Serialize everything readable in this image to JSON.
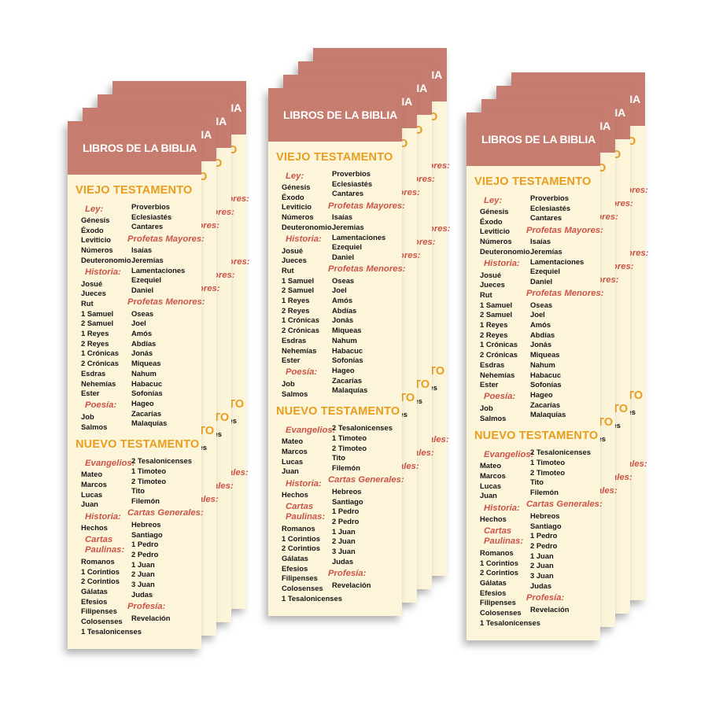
{
  "title": {
    "text": "LIBROS DE LA BIBLIA"
  },
  "colors": {
    "background": "#FFFFFF",
    "header": "#C67D70",
    "body": "#FCF5DA",
    "heading": "#E89D1F",
    "category": "#CB5347",
    "book": "#161616"
  },
  "old_testament": {
    "heading": "VIEJO TESTAMENTO",
    "left": [
      {
        "t": "cat",
        "text": "Ley:"
      },
      {
        "t": "book",
        "text": "Génesis"
      },
      {
        "t": "book",
        "text": "Éxodo"
      },
      {
        "t": "book",
        "text": "Leviticio"
      },
      {
        "t": "book",
        "text": "Números"
      },
      {
        "t": "book",
        "text": "Deuteronomio"
      },
      {
        "t": "cat",
        "text": "Historia:"
      },
      {
        "t": "book",
        "text": "Josué"
      },
      {
        "t": "book",
        "text": "Jueces"
      },
      {
        "t": "book",
        "text": "Rut"
      },
      {
        "t": "book",
        "text": "1 Samuel"
      },
      {
        "t": "book",
        "text": "2 Samuel"
      },
      {
        "t": "book",
        "text": "1 Reyes"
      },
      {
        "t": "book",
        "text": "2 Reyes"
      },
      {
        "t": "book",
        "text": "1 Crónicas"
      },
      {
        "t": "book",
        "text": "2 Crónicas"
      },
      {
        "t": "book",
        "text": "Esdras"
      },
      {
        "t": "book",
        "text": "Nehemías"
      },
      {
        "t": "book",
        "text": "Ester"
      },
      {
        "t": "cat",
        "text": "Poesía:"
      },
      {
        "t": "book",
        "text": "Job"
      },
      {
        "t": "book",
        "text": "Salmos"
      }
    ],
    "right": [
      {
        "t": "book",
        "text": "Proverbios"
      },
      {
        "t": "book",
        "text": "Eclesiastés"
      },
      {
        "t": "book",
        "text": "Cantares"
      },
      {
        "t": "cat",
        "text": "Profetas Mayores:"
      },
      {
        "t": "book",
        "text": "Isaías"
      },
      {
        "t": "book",
        "text": "Jeremías"
      },
      {
        "t": "book",
        "text": "Lamentaciones"
      },
      {
        "t": "book",
        "text": "Ezequiel"
      },
      {
        "t": "book",
        "text": "Daniel"
      },
      {
        "t": "cat",
        "text": "Profetas Menores:"
      },
      {
        "t": "book",
        "text": "Oseas"
      },
      {
        "t": "book",
        "text": "Joel"
      },
      {
        "t": "book",
        "text": "Amós"
      },
      {
        "t": "book",
        "text": "Abdías"
      },
      {
        "t": "book",
        "text": "Jonás"
      },
      {
        "t": "book",
        "text": "Miqueas"
      },
      {
        "t": "book",
        "text": "Nahum"
      },
      {
        "t": "book",
        "text": "Habacuc"
      },
      {
        "t": "book",
        "text": "Sofonías"
      },
      {
        "t": "book",
        "text": "Hageo"
      },
      {
        "t": "book",
        "text": "Zacarías"
      },
      {
        "t": "book",
        "text": "Malaquías"
      }
    ]
  },
  "new_testament": {
    "heading": "NUEVO TESTAMENTO",
    "left": [
      {
        "t": "cat",
        "text": "Evangelios:"
      },
      {
        "t": "book",
        "text": "Mateo"
      },
      {
        "t": "book",
        "text": "Marcos"
      },
      {
        "t": "book",
        "text": "Lucas"
      },
      {
        "t": "book",
        "text": "Juan"
      },
      {
        "t": "cat",
        "text": "Historia:"
      },
      {
        "t": "book",
        "text": "Hechos"
      },
      {
        "t": "cat",
        "text": "Cartas Paulinas:"
      },
      {
        "t": "book",
        "text": "Romanos"
      },
      {
        "t": "book",
        "text": "1 Corintios"
      },
      {
        "t": "book",
        "text": "2 Corintios"
      },
      {
        "t": "book",
        "text": "Gálatas"
      },
      {
        "t": "book",
        "text": "Efesios"
      },
      {
        "t": "book",
        "text": "Filipenses"
      },
      {
        "t": "book",
        "text": "Colosenses"
      },
      {
        "t": "book",
        "text": "1 Tesalonicenses"
      }
    ],
    "right": [
      {
        "t": "book",
        "text": "2 Tesalonicenses"
      },
      {
        "t": "book",
        "text": "1 Timoteo"
      },
      {
        "t": "book",
        "text": "2 Timoteo"
      },
      {
        "t": "book",
        "text": "Tito"
      },
      {
        "t": "book",
        "text": "Filemón"
      },
      {
        "t": "cat",
        "text": "Cartas Generales:"
      },
      {
        "t": "book",
        "text": "Hebreos"
      },
      {
        "t": "book",
        "text": "Santiago"
      },
      {
        "t": "book",
        "text": "1 Pedro"
      },
      {
        "t": "book",
        "text": "2 Pedro"
      },
      {
        "t": "book",
        "text": "1 Juan"
      },
      {
        "t": "book",
        "text": "2 Juan"
      },
      {
        "t": "book",
        "text": "3 Juan"
      },
      {
        "t": "book",
        "text": "Judas"
      },
      {
        "t": "cat",
        "text": "Profesía:"
      },
      {
        "t": "book",
        "text": "Revelación"
      }
    ]
  }
}
